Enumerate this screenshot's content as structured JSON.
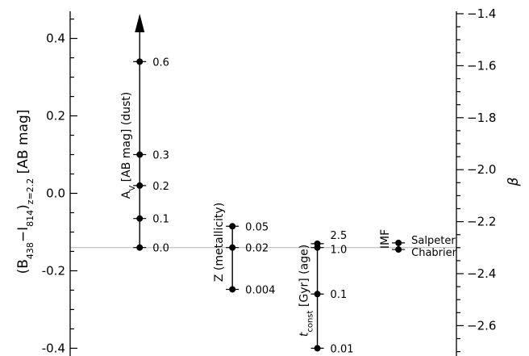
{
  "chart_data": {
    "type": "scatter",
    "left_axis": {
      "label_parts": [
        "(B",
        "438",
        "−I",
        "814",
        ")",
        "z=2.2",
        " [AB mag]"
      ],
      "ylim": [
        -0.42,
        0.47
      ],
      "ticks": [
        0.4,
        0.2,
        0.0,
        -0.2,
        -0.4
      ],
      "tick_labels": [
        "0.4",
        "0.2",
        "0.0",
        "-0.2",
        "-0.4"
      ]
    },
    "right_axis": {
      "label": "β",
      "ticks": [
        -1.4,
        -1.6,
        -1.8,
        -2.0,
        -2.2,
        -2.4,
        -2.6
      ],
      "tick_labels": [
        "−1.4",
        "−1.6",
        "−1.8",
        "−2.0",
        "−2.2",
        "−2.4",
        "−2.6"
      ]
    },
    "reference_value": -0.14,
    "groups": [
      {
        "key": "av",
        "title_parts": [
          "A",
          "V",
          " [AB mag] (dust)"
        ],
        "x": 0.18,
        "arrow_top": true,
        "points": [
          {
            "value": 0.34,
            "label": "0.6"
          },
          {
            "value": 0.1,
            "label": "0.3"
          },
          {
            "value": 0.02,
            "label": "0.2"
          },
          {
            "value": -0.065,
            "label": "0.1"
          },
          {
            "value": -0.14,
            "label": "0.0"
          }
        ]
      },
      {
        "key": "z",
        "title_parts": [
          "Z (metallicity)"
        ],
        "x": 0.42,
        "points": [
          {
            "value": -0.085,
            "label": "0.05"
          },
          {
            "value": -0.14,
            "label": "0.02"
          },
          {
            "value": -0.248,
            "label": "0.004"
          }
        ]
      },
      {
        "key": "tconst",
        "title_parts": [
          "t",
          "const",
          " [Gyr] (age)"
        ],
        "x": 0.64,
        "points": [
          {
            "value": -0.13,
            "label": "2.5"
          },
          {
            "value": -0.14,
            "label": "1.0"
          },
          {
            "value": -0.26,
            "label": "0.1"
          },
          {
            "value": -0.4,
            "label": "0.01"
          }
        ]
      },
      {
        "key": "imf",
        "title_parts": [
          "IMF"
        ],
        "x": 0.85,
        "points": [
          {
            "value": -0.128,
            "label": "Salpeter"
          },
          {
            "value": -0.145,
            "label": "Chabrier"
          }
        ]
      }
    ]
  }
}
